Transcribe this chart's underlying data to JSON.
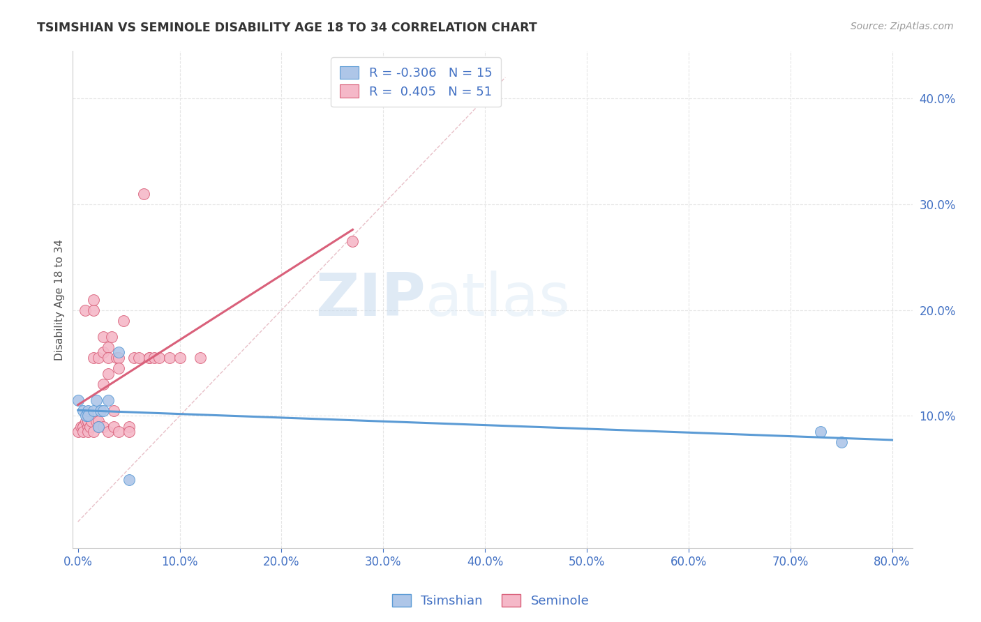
{
  "title": "TSIMSHIAN VS SEMINOLE DISABILITY AGE 18 TO 34 CORRELATION CHART",
  "source": "Source: ZipAtlas.com",
  "ylabel": "Disability Age 18 to 34",
  "watermark_zip": "ZIP",
  "watermark_atlas": "atlas",
  "tsimshian_R": -0.306,
  "tsimshian_N": 15,
  "seminole_R": 0.405,
  "seminole_N": 51,
  "tsimshian_color": "#aec6e8",
  "seminole_color": "#f5b8c8",
  "tsimshian_line_color": "#5b9bd5",
  "seminole_line_color": "#d9607a",
  "diagonal_color": "#cccccc",
  "xlim": [
    -0.005,
    0.82
  ],
  "ylim": [
    -0.025,
    0.445
  ],
  "xticks": [
    0.0,
    0.1,
    0.2,
    0.3,
    0.4,
    0.5,
    0.6,
    0.7,
    0.8
  ],
  "yticks": [
    0.1,
    0.2,
    0.3,
    0.4
  ],
  "tsimshian_x": [
    0.0,
    0.005,
    0.008,
    0.01,
    0.01,
    0.015,
    0.018,
    0.02,
    0.022,
    0.025,
    0.03,
    0.04,
    0.05,
    0.73,
    0.75
  ],
  "tsimshian_y": [
    0.115,
    0.105,
    0.1,
    0.105,
    0.1,
    0.105,
    0.115,
    0.09,
    0.105,
    0.105,
    0.115,
    0.16,
    0.04,
    0.085,
    0.075
  ],
  "seminole_x": [
    0.0,
    0.003,
    0.005,
    0.005,
    0.005,
    0.007,
    0.008,
    0.01,
    0.01,
    0.01,
    0.01,
    0.01,
    0.012,
    0.013,
    0.015,
    0.015,
    0.015,
    0.015,
    0.018,
    0.02,
    0.02,
    0.02,
    0.025,
    0.025,
    0.025,
    0.025,
    0.03,
    0.03,
    0.03,
    0.03,
    0.033,
    0.035,
    0.035,
    0.038,
    0.04,
    0.04,
    0.04,
    0.045,
    0.05,
    0.05,
    0.055,
    0.06,
    0.065,
    0.07,
    0.07,
    0.075,
    0.08,
    0.09,
    0.1,
    0.12,
    0.27
  ],
  "seminole_y": [
    0.085,
    0.09,
    0.09,
    0.09,
    0.085,
    0.2,
    0.095,
    0.09,
    0.095,
    0.1,
    0.095,
    0.085,
    0.09,
    0.095,
    0.2,
    0.21,
    0.155,
    0.085,
    0.095,
    0.095,
    0.155,
    0.09,
    0.175,
    0.16,
    0.13,
    0.09,
    0.165,
    0.155,
    0.14,
    0.085,
    0.175,
    0.105,
    0.09,
    0.155,
    0.155,
    0.145,
    0.085,
    0.19,
    0.09,
    0.085,
    0.155,
    0.155,
    0.31,
    0.155,
    0.155,
    0.155,
    0.155,
    0.155,
    0.155,
    0.155,
    0.265
  ],
  "background_color": "#ffffff",
  "title_color": "#333333",
  "axis_label_color": "#555555",
  "tick_label_color": "#4472c4",
  "grid_color": "#e5e5e5",
  "legend_label_color": "#4472c4",
  "seminole_line_x_start": 0.0,
  "seminole_line_x_end": 0.27,
  "tsimshian_line_x_start": 0.0,
  "tsimshian_line_x_end": 0.8
}
